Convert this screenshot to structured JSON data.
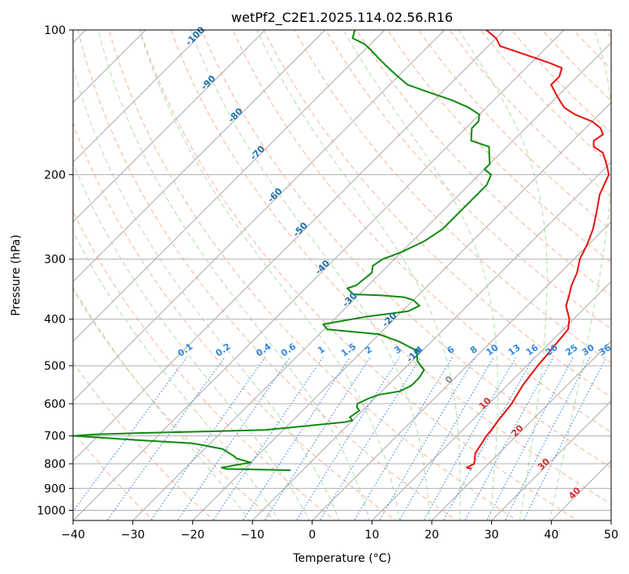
{
  "chart_data": {
    "type": "line",
    "chart_kind": "skew-T log-P diagram",
    "title": "wetPf2_C2E1.2025.114.02.56.R16",
    "xlabel": "Temperature (°C)",
    "ylabel": "Pressure (hPa)",
    "xlim": [
      -40,
      50
    ],
    "ylim": [
      1050,
      100
    ],
    "y_scale": "log",
    "skew_angle_deg": 45,
    "grid": true,
    "x_ticks": [
      "−40",
      "−30",
      "−20",
      "−10",
      "0",
      "10",
      "20",
      "30",
      "40",
      "50"
    ],
    "x_tick_values": [
      -40,
      -30,
      -20,
      -10,
      0,
      10,
      20,
      30,
      40,
      50
    ],
    "y_ticks": [
      "100",
      "200",
      "300",
      "400",
      "500",
      "600",
      "700",
      "800",
      "900",
      "1000"
    ],
    "y_tick_values": [
      100,
      200,
      300,
      400,
      500,
      600,
      700,
      800,
      900,
      1000
    ],
    "colors": {
      "temperature": "#e8120f",
      "dewpoint": "#108a10",
      "isotherm": "#a0a0a0",
      "dry_adiabat": "#f5a080",
      "moist_adiabat": "#a8d8a0",
      "mixing_ratio": "#3388e0",
      "isotherm_label": "#1f6fae",
      "dry_adiabat_label": "#d03030",
      "pressure_grid": "#b0b0b0",
      "dry_adiabat_extra": "#d8c0a0"
    },
    "series": [
      {
        "key": "temperature",
        "points": [
          [
            18.0,
            820
          ],
          [
            17.0,
            815
          ],
          [
            17.6,
            800
          ],
          [
            16.0,
            760
          ],
          [
            15.0,
            700
          ],
          [
            14.8,
            680
          ],
          [
            14.5,
            660
          ],
          [
            13.8,
            600
          ],
          [
            12.6,
            550
          ],
          [
            11.8,
            500
          ],
          [
            11.5,
            470
          ],
          [
            11.2,
            450
          ],
          [
            10.8,
            420
          ],
          [
            9.3,
            400
          ],
          [
            6.5,
            375
          ],
          [
            5.5,
            360
          ],
          [
            4.0,
            340
          ],
          [
            2.8,
            320
          ],
          [
            1.0,
            300
          ],
          [
            -0.2,
            280
          ],
          [
            -1.8,
            260
          ],
          [
            -4.0,
            240
          ],
          [
            -6.5,
            220
          ],
          [
            -8.3,
            200
          ],
          [
            -10.5,
            190
          ],
          [
            -13.0,
            180
          ],
          [
            -15.5,
            175
          ],
          [
            -16.5,
            170
          ],
          [
            -16.0,
            165
          ],
          [
            -17.5,
            160
          ],
          [
            -20.0,
            155
          ],
          [
            -24.0,
            150
          ],
          [
            -27.0,
            145
          ],
          [
            -29.0,
            140
          ],
          [
            -31.0,
            135
          ],
          [
            -33.0,
            130
          ],
          [
            -33.0,
            125
          ],
          [
            -34.0,
            120
          ],
          [
            -37.0,
            117
          ],
          [
            -43.0,
            112
          ],
          [
            -48.0,
            108
          ],
          [
            -50.0,
            104
          ],
          [
            -53.0,
            100
          ]
        ]
      },
      {
        "key": "dewpoint",
        "points": [
          [
            -12.0,
            825
          ],
          [
            -23.0,
            820
          ],
          [
            -24.0,
            815
          ],
          [
            -20.0,
            795
          ],
          [
            -21.0,
            790
          ],
          [
            -23.0,
            780
          ],
          [
            -24.0,
            770
          ],
          [
            -27.0,
            745
          ],
          [
            -33.0,
            725
          ],
          [
            -42.0,
            715
          ],
          [
            -50.0,
            705
          ],
          [
            -54.0,
            700
          ],
          [
            -51.0,
            695
          ],
          [
            -43.0,
            690
          ],
          [
            -32.0,
            685
          ],
          [
            -23.0,
            680
          ],
          [
            -18.0,
            670
          ],
          [
            -11.0,
            655
          ],
          [
            -10.0,
            650
          ],
          [
            -11.0,
            640
          ],
          [
            -10.5,
            620
          ],
          [
            -11.5,
            610
          ],
          [
            -12.0,
            600
          ],
          [
            -11.0,
            585
          ],
          [
            -10.0,
            575
          ],
          [
            -7.0,
            565
          ],
          [
            -6.0,
            550
          ],
          [
            -6.0,
            530
          ],
          [
            -6.5,
            510
          ],
          [
            -9.0,
            490
          ],
          [
            -10.2,
            475
          ],
          [
            -11.0,
            465
          ],
          [
            -15.5,
            445
          ],
          [
            -20.0,
            430
          ],
          [
            -29.5,
            420
          ],
          [
            -31.0,
            410
          ],
          [
            -25.0,
            395
          ],
          [
            -19.0,
            385
          ],
          [
            -18.0,
            375
          ],
          [
            -20.0,
            365
          ],
          [
            -22.0,
            360
          ],
          [
            -26.0,
            357
          ],
          [
            -31.0,
            355
          ],
          [
            -32.0,
            350
          ],
          [
            -33.0,
            345
          ],
          [
            -32.0,
            340
          ],
          [
            -31.5,
            320
          ],
          [
            -32.5,
            310
          ],
          [
            -32.0,
            300
          ],
          [
            -30.0,
            290
          ],
          [
            -28.0,
            275
          ],
          [
            -27.0,
            260
          ],
          [
            -27.0,
            250
          ],
          [
            -27.0,
            240
          ],
          [
            -27.0,
            225
          ],
          [
            -27.0,
            210
          ],
          [
            -28.0,
            200
          ],
          [
            -30.0,
            195
          ],
          [
            -30.0,
            190
          ],
          [
            -31.0,
            185
          ],
          [
            -32.0,
            180
          ],
          [
            -33.0,
            175
          ],
          [
            -37.0,
            170
          ],
          [
            -38.0,
            165
          ],
          [
            -39.0,
            160
          ],
          [
            -39.0,
            155
          ],
          [
            -40.0,
            150
          ],
          [
            -43.0,
            145
          ],
          [
            -47.0,
            140
          ],
          [
            -52.0,
            135
          ],
          [
            -57.0,
            130
          ],
          [
            -60.0,
            125
          ],
          [
            -63.0,
            120
          ],
          [
            -66.0,
            115
          ],
          [
            -69.0,
            110
          ],
          [
            -71.0,
            107
          ],
          [
            -74.0,
            104
          ],
          [
            -75.0,
            100
          ]
        ]
      }
    ],
    "isotherm_labels": [
      "-100",
      "-90",
      "-80",
      "-70",
      "-60",
      "-50",
      "-40",
      "-30",
      "-20",
      "-10",
      "0",
      "10",
      "20",
      "30",
      "40"
    ],
    "isotherm_label_values": [
      -100,
      -90,
      -80,
      -70,
      -60,
      -50,
      -40,
      -30,
      -20,
      -10,
      0,
      10,
      20,
      30,
      40
    ],
    "mixing_ratio_labels": [
      "0.1",
      "0.2",
      "0.4",
      "0.6",
      "1",
      "1.5",
      "2",
      "3",
      "4",
      "6",
      "8",
      "10",
      "13",
      "16",
      "20",
      "25",
      "30",
      "36"
    ],
    "mixing_ratio_values": [
      0.1,
      0.2,
      0.4,
      0.6,
      1,
      1.5,
      2,
      3,
      4,
      6,
      8,
      10,
      13,
      16,
      20,
      25,
      30,
      36
    ],
    "mixing_ratio_label_pressure_hpa": 480
  }
}
